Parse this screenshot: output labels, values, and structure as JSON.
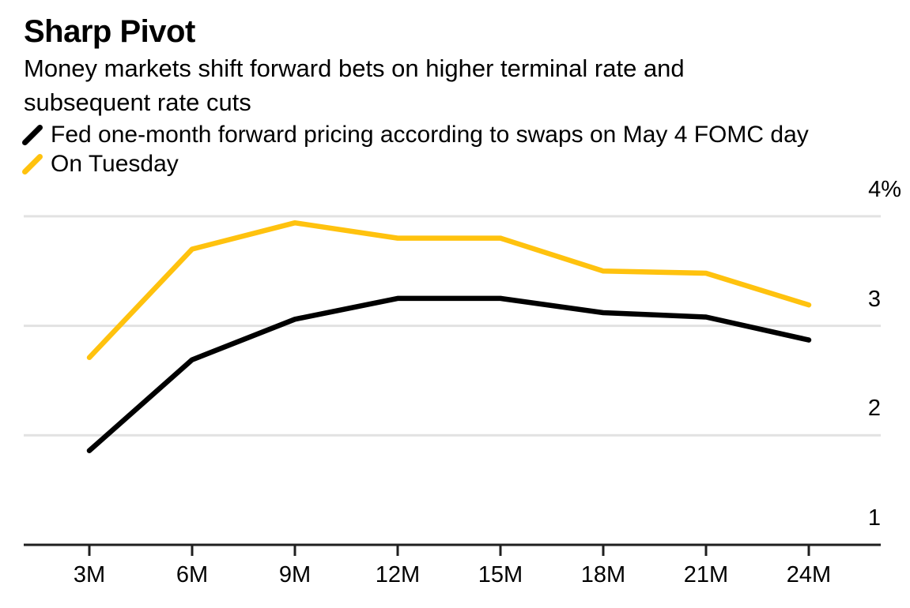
{
  "chart_data": {
    "type": "line",
    "title": "Sharp Pivot",
    "subtitle": "Money markets shift forward bets on higher terminal rate and\nsubsequent rate cuts",
    "categories": [
      "3M",
      "6M",
      "9M",
      "12M",
      "15M",
      "18M",
      "21M",
      "24M"
    ],
    "series": [
      {
        "name": "Fed one-month forward pricing according to swaps on May 4 FOMC day",
        "color": "#000000",
        "values": [
          1.86,
          2.69,
          3.06,
          3.25,
          3.25,
          3.12,
          3.08,
          2.87
        ]
      },
      {
        "name": "On Tuesday",
        "color": "#FFC20E",
        "values": [
          2.71,
          3.7,
          3.94,
          3.8,
          3.8,
          3.5,
          3.48,
          3.19
        ]
      }
    ],
    "y_ticks": [
      {
        "value": 1,
        "label": "1"
      },
      {
        "value": 2,
        "label": "2"
      },
      {
        "value": 3,
        "label": "3"
      },
      {
        "value": 4,
        "label": "4%"
      }
    ],
    "ylim": [
      1,
      4.3
    ],
    "unit": "%",
    "grid": "horizontal",
    "y_axis_side": "right",
    "legend_position": "top-left",
    "axis_color": "#1F1F1F",
    "grid_color": "#E2E2E2",
    "background": "#FFFFFF"
  }
}
